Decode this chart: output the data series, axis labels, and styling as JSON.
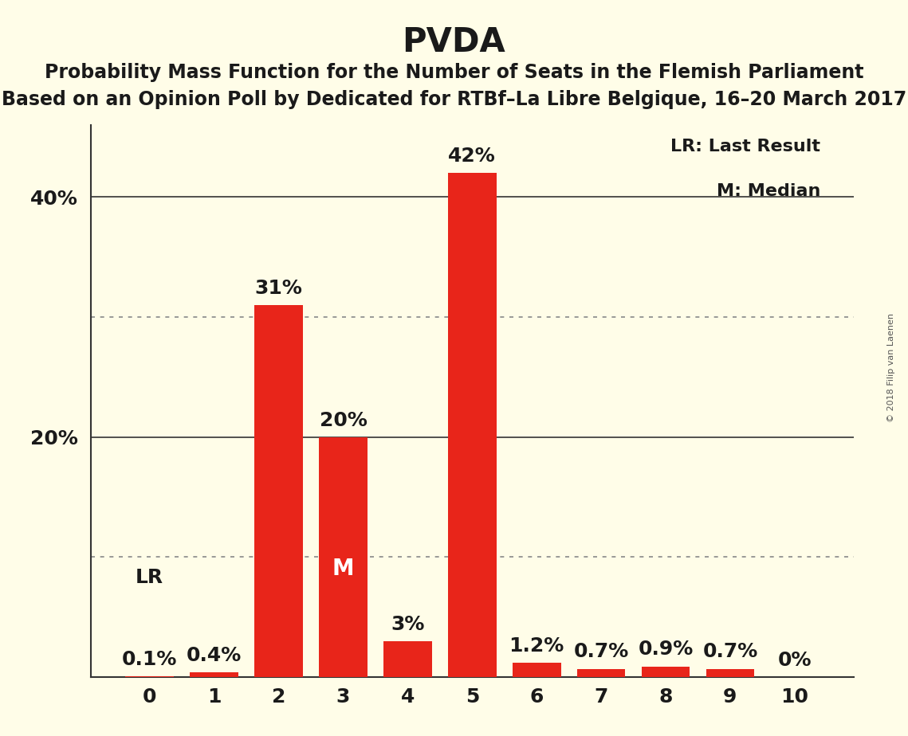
{
  "title": "PVDA",
  "subtitle1": "Probability Mass Function for the Number of Seats in the Flemish Parliament",
  "subtitle2": "Based on an Opinion Poll by Dedicated for RTBf–La Libre Belgique, 16–20 March 2017",
  "copyright": "© 2018 Filip van Laenen",
  "categories": [
    0,
    1,
    2,
    3,
    4,
    5,
    6,
    7,
    8,
    9,
    10
  ],
  "values": [
    0.1,
    0.4,
    31.0,
    20.0,
    3.0,
    42.0,
    1.2,
    0.7,
    0.9,
    0.7,
    0.0
  ],
  "bar_color": "#E8251A",
  "background_color": "#FFFDE8",
  "text_color": "#1A1A1A",
  "bar_labels": [
    "0.1%",
    "0.4%",
    "31%",
    "20%",
    "3%",
    "42%",
    "1.2%",
    "0.7%",
    "0.9%",
    "0.7%",
    "0%"
  ],
  "lr_index": 0,
  "median_index": 3,
  "lr_label": "LR",
  "median_label": "M",
  "legend_lr": "LR: Last Result",
  "legend_m": "M: Median",
  "ylim": [
    0,
    46
  ],
  "dotted_lines": [
    10,
    30
  ],
  "solid_lines": [
    20,
    40
  ],
  "title_fontsize": 30,
  "subtitle_fontsize": 17,
  "bar_label_fontsize": 18,
  "axis_tick_fontsize": 18,
  "legend_fontsize": 16,
  "median_label_fontsize": 20,
  "lr_label_fontsize": 18,
  "ytick_fontsize": 18,
  "copyright_fontsize": 8
}
